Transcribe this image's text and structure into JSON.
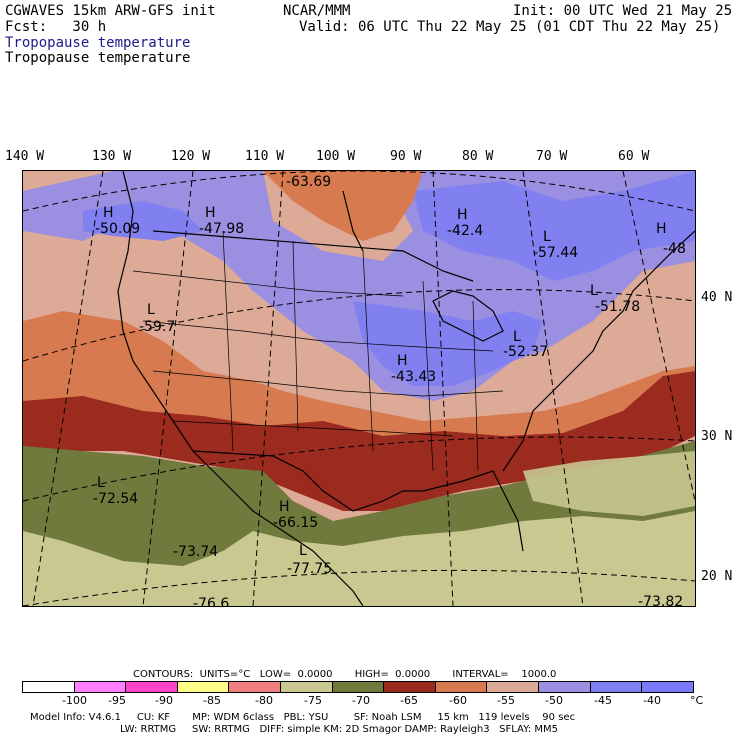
{
  "header": {
    "model": "CGWAVES 15km ARW-GFS init",
    "forecast": "Fcst:   30 h",
    "org": "NCAR/MMM",
    "init": "Init: 00 UTC Wed 21 May 25",
    "valid": "Valid: 06 UTC Thu 22 May 25 (01 CDT Thu 22 May 25)",
    "field_title_colored": "Tropopause temperature",
    "field_title_plain": "Tropopause temperature"
  },
  "longitudes": [
    "140 W",
    "130 W",
    "120 W",
    "110 W",
    "100 W",
    "90 W",
    "80 W",
    "70 W",
    "60 W"
  ],
  "latitudes": [
    "40 N",
    "30 N",
    "20 N"
  ],
  "map_labels": [
    {
      "id": "h-nw",
      "letter": "H",
      "value": "-50.09"
    },
    {
      "id": "h-mt",
      "letter": "H",
      "value": "-47.98"
    },
    {
      "id": "top",
      "letter": "",
      "value": "-63.69"
    },
    {
      "id": "h-on",
      "letter": "H",
      "value": "-42.4"
    },
    {
      "id": "l-qc",
      "letter": "L",
      "value": "-57.44"
    },
    {
      "id": "h-ne",
      "letter": "H",
      "value": "-48"
    },
    {
      "id": "l-ne",
      "letter": "L",
      "value": "-51.78"
    },
    {
      "id": "l-ca",
      "letter": "L",
      "value": "-59.7"
    },
    {
      "id": "l-oh",
      "letter": "L",
      "value": "-52.37"
    },
    {
      "id": "h-mo",
      "letter": "H",
      "value": "-43.43"
    },
    {
      "id": "l-az",
      "letter": "L",
      "value": "-72.54"
    },
    {
      "id": "h-tx",
      "letter": "H",
      "value": "-66.15"
    },
    {
      "id": "mx1",
      "letter": "",
      "value": "-73.74"
    },
    {
      "id": "l-mx",
      "letter": "L",
      "value": "-77.75"
    },
    {
      "id": "mx2",
      "letter": "",
      "value": "-76.6"
    },
    {
      "id": "se",
      "letter": "",
      "value": "-73.82"
    }
  ],
  "contours_line": "CONTOURS:  UNITS=°C   LOW=  0.0000       HIGH=  0.0000       INTERVAL=    1000.0",
  "legend": {
    "colors": [
      "#ffffff",
      "#ff7fff",
      "#ff44cc",
      "#ffff88",
      "#f08080",
      "#c8c890",
      "#6f7a3c",
      "#9b2a1f",
      "#d87a50",
      "#ddaa98",
      "#9a8fe0",
      "#8080f0",
      "#7a7af8"
    ],
    "labels": [
      "-100",
      "-95",
      "-90",
      "-85",
      "-80",
      "-75",
      "-70",
      "-65",
      "-60",
      "-55",
      "-50",
      "-45",
      "-40",
      "°C"
    ]
  },
  "footer": {
    "line1": "Model Info: V4.6.1     CU: KF       MP: WDM 6class   PBL: YSU        SF: Noah LSM     15 km   119 levels    90 sec",
    "line2": "LW: RRTMG     SW: RRTMG   DIFF: simple KM: 2D Smagor DAMP: Rayleigh3   SFLAY: MM5"
  }
}
